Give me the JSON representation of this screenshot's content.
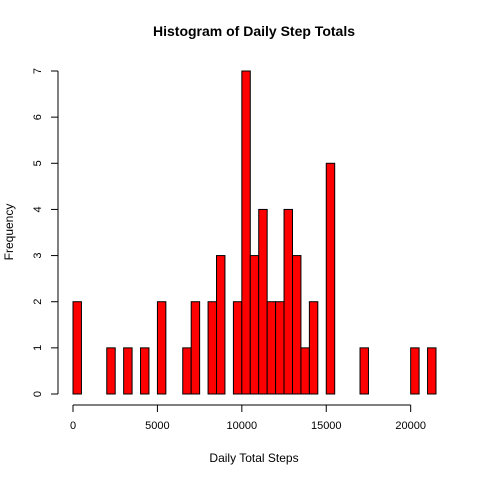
{
  "chart_data": {
    "type": "histogram",
    "title": "Histogram of Daily Step Totals",
    "xlabel": "Daily Total Steps",
    "ylabel": "Frequency",
    "bar_color": "#FF0000",
    "bar_border_color": "#000000",
    "bin_width": 500,
    "bins": [
      {
        "x0": 0,
        "x1": 500,
        "count": 2
      },
      {
        "x0": 2000,
        "x1": 2500,
        "count": 1
      },
      {
        "x0": 3000,
        "x1": 3500,
        "count": 1
      },
      {
        "x0": 4000,
        "x1": 4500,
        "count": 1
      },
      {
        "x0": 5000,
        "x1": 5500,
        "count": 2
      },
      {
        "x0": 6500,
        "x1": 7000,
        "count": 1
      },
      {
        "x0": 7000,
        "x1": 7500,
        "count": 2
      },
      {
        "x0": 8000,
        "x1": 8500,
        "count": 2
      },
      {
        "x0": 8500,
        "x1": 9000,
        "count": 3
      },
      {
        "x0": 9500,
        "x1": 10000,
        "count": 2
      },
      {
        "x0": 10000,
        "x1": 10500,
        "count": 7
      },
      {
        "x0": 10500,
        "x1": 11000,
        "count": 3
      },
      {
        "x0": 11000,
        "x1": 11500,
        "count": 4
      },
      {
        "x0": 11500,
        "x1": 12000,
        "count": 2
      },
      {
        "x0": 12000,
        "x1": 12500,
        "count": 2
      },
      {
        "x0": 12500,
        "x1": 13000,
        "count": 4
      },
      {
        "x0": 13000,
        "x1": 13500,
        "count": 3
      },
      {
        "x0": 13500,
        "x1": 14000,
        "count": 1
      },
      {
        "x0": 14000,
        "x1": 14500,
        "count": 2
      },
      {
        "x0": 15000,
        "x1": 15500,
        "count": 5
      },
      {
        "x0": 17000,
        "x1": 17500,
        "count": 1
      },
      {
        "x0": 20000,
        "x1": 20500,
        "count": 1
      },
      {
        "x0": 21000,
        "x1": 21500,
        "count": 1
      }
    ],
    "xlim": [
      0,
      21500
    ],
    "ylim": [
      0,
      7
    ],
    "x_ticks": [
      0,
      5000,
      10000,
      15000,
      20000
    ],
    "y_ticks": [
      0,
      1,
      2,
      3,
      4,
      5,
      6,
      7
    ],
    "grid": false,
    "legend": "none"
  }
}
